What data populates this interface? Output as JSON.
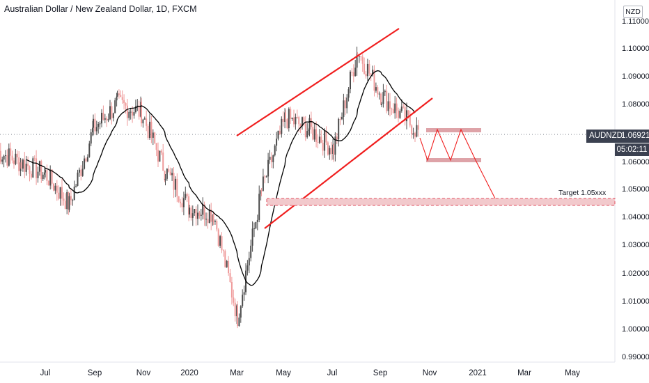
{
  "header": {
    "title": "Australian Dollar / New Zealand Dollar, 1D, FXCM",
    "currency": "NZD"
  },
  "price_scale": {
    "symbol": "AUDNZD",
    "last_price": "1.06921",
    "countdown": "05:02:11"
  },
  "annotation": {
    "target": "Target 1.05xxx"
  },
  "colors": {
    "bull": "#4a4a4a",
    "bear": "#ef9a9a",
    "channel": "#f01e1e",
    "ma": "#000000",
    "zone": "#dea3a8"
  },
  "chart_data": {
    "type": "candlestick",
    "symbol": "AUDNZD",
    "timeframe": "1D",
    "source": "FXCM",
    "y_range": [
      0.99,
      1.11
    ],
    "yticks": [
      "1.11000",
      "1.10000",
      "1.09000",
      "1.08000",
      "1.07000",
      "1.06000",
      "1.05000",
      "1.04000",
      "1.03000",
      "1.02000",
      "1.01000",
      "1.00000",
      "0.99000"
    ],
    "xticks": [
      "Jul",
      "Sep",
      "Nov",
      "2020",
      "Mar",
      "May",
      "Jul",
      "Sep",
      "Nov",
      "2021",
      "Mar",
      "May"
    ],
    "approx_close_path": [
      {
        "date": "2019-05",
        "close": 1.062
      },
      {
        "date": "2019-06",
        "close": 1.058
      },
      {
        "date": "2019-07",
        "close": 1.054
      },
      {
        "date": "2019-08",
        "close": 1.043
      },
      {
        "date": "2019-09",
        "close": 1.07
      },
      {
        "date": "2019-10",
        "close": 1.079
      },
      {
        "date": "2019-11",
        "close": 1.076
      },
      {
        "date": "2019-12",
        "close": 1.055
      },
      {
        "date": "2020-01",
        "close": 1.042
      },
      {
        "date": "2020-02",
        "close": 1.04
      },
      {
        "date": "2020-03",
        "close": 1.003
      },
      {
        "date": "2020-04",
        "close": 1.048
      },
      {
        "date": "2020-05",
        "close": 1.074
      },
      {
        "date": "2020-06",
        "close": 1.07
      },
      {
        "date": "2020-07",
        "close": 1.063
      },
      {
        "date": "2020-08",
        "close": 1.098
      },
      {
        "date": "2020-09",
        "close": 1.082
      },
      {
        "date": "2020-10",
        "close": 1.069
      }
    ],
    "last_close": 1.06921,
    "moving_average": "single line following the closes",
    "channel": "rising red parallel channel, roughly Mar 2020 to Oct 2020",
    "target_zone": [
      1.045,
      1.046
    ],
    "target_label": "Target 1.05xxx",
    "projection": "zig-zag between about 1.060 and 1.071, then a decline to about 1.046",
    "grid": false,
    "legend": "none"
  }
}
